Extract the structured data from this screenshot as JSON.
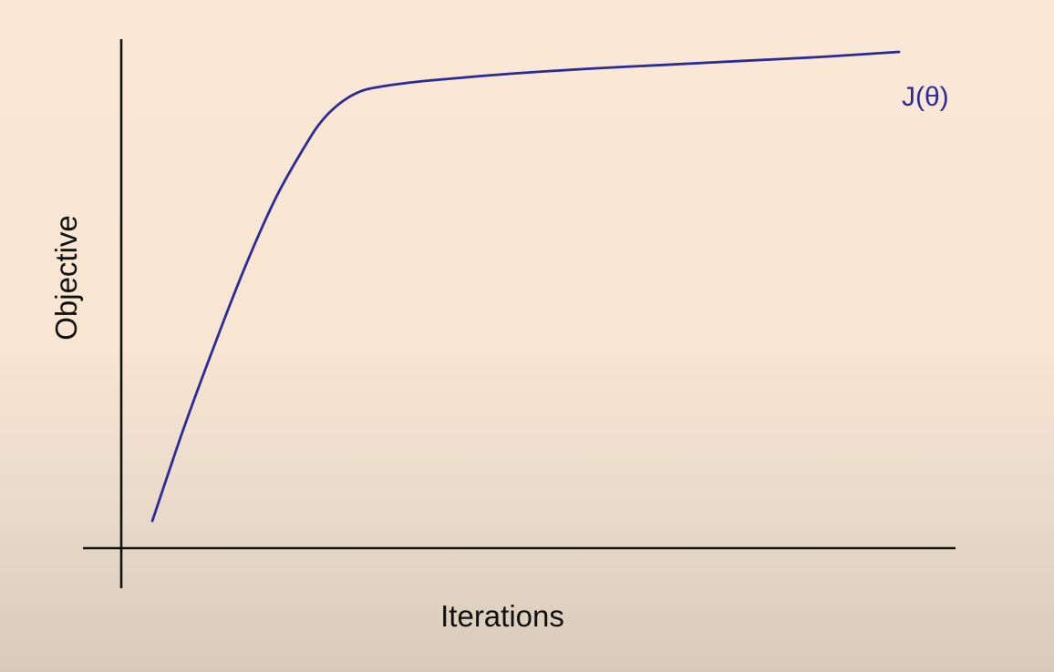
{
  "chart_data": {
    "type": "line",
    "xlabel": "Iterations",
    "ylabel": "Objective",
    "xlim": [
      0,
      100
    ],
    "ylim": [
      0,
      100
    ],
    "grid": false,
    "legend": "none",
    "axis_ticks": false,
    "series": [
      {
        "name": "J(θ)",
        "color": "#2b2a9a",
        "x": [
          4,
          8,
          12,
          16,
          20,
          24,
          26,
          28,
          30,
          32,
          36,
          40,
          50,
          60,
          70,
          80,
          90,
          100
        ],
        "y": [
          5.5,
          24,
          41,
          57,
          71,
          82,
          86.5,
          89.5,
          91.5,
          92.6,
          93.6,
          94.3,
          95.6,
          96.6,
          97.4,
          98.2,
          99.0,
          100
        ]
      }
    ]
  }
}
